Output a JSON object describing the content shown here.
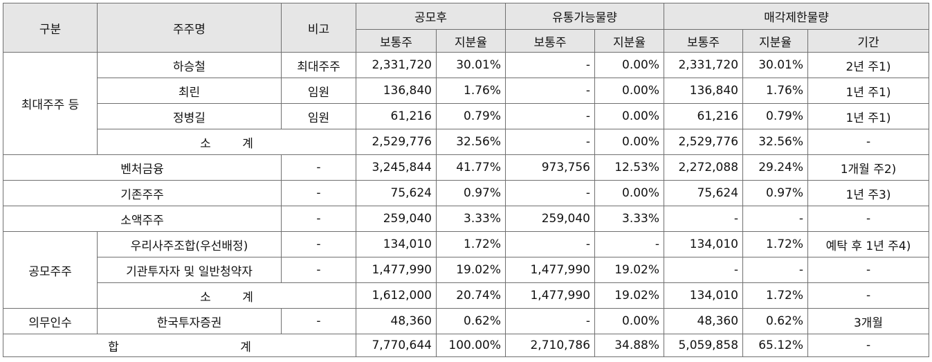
{
  "header": {
    "category": "구분",
    "shareholder": "주주명",
    "note": "비고",
    "after_ipo": "공모후",
    "tradable": "유통가능물량",
    "restricted": "매각제한물량",
    "common": "보통주",
    "ratio": "지분율",
    "period": "기간"
  },
  "groups": {
    "largest": "최대주주 등",
    "public": "공모주주",
    "underwriter": "의무인수"
  },
  "rows": [
    {
      "name": "하승철",
      "note": "최대주주",
      "shares": "2,331,720",
      "ratio": "30.01%",
      "t_shares": "-",
      "t_ratio": "0.00%",
      "r_shares": "2,331,720",
      "r_ratio": "30.01%",
      "period": "2년 주1)"
    },
    {
      "name": "최린",
      "note": "임원",
      "shares": "136,840",
      "ratio": "1.76%",
      "t_shares": "-",
      "t_ratio": "0.00%",
      "r_shares": "136,840",
      "r_ratio": "1.76%",
      "period": "1년 주1)"
    },
    {
      "name": "정병길",
      "note": "임원",
      "shares": "61,216",
      "ratio": "0.79%",
      "t_shares": "-",
      "t_ratio": "0.00%",
      "r_shares": "61,216",
      "r_ratio": "0.79%",
      "period": "1년 주1)"
    },
    {
      "name": "소 계",
      "shares": "2,529,776",
      "ratio": "32.56%",
      "t_shares": "-",
      "t_ratio": "0.00%",
      "r_shares": "2,529,776",
      "r_ratio": "32.56%",
      "period": "-"
    },
    {
      "name": "벤처금융",
      "note": "-",
      "shares": "3,245,844",
      "ratio": "41.77%",
      "t_shares": "973,756",
      "t_ratio": "12.53%",
      "r_shares": "2,272,088",
      "r_ratio": "29.24%",
      "period": "1개월 주2)"
    },
    {
      "name": "기존주주",
      "note": "-",
      "shares": "75,624",
      "ratio": "0.97%",
      "t_shares": "-",
      "t_ratio": "0.00%",
      "r_shares": "75,624",
      "r_ratio": "0.97%",
      "period": "1년 주3)"
    },
    {
      "name": "소액주주",
      "note": "-",
      "shares": "259,040",
      "ratio": "3.33%",
      "t_shares": "259,040",
      "t_ratio": "3.33%",
      "r_shares": "-",
      "r_ratio": "-",
      "period": "-"
    },
    {
      "name": "우리사주조합(우선배정)",
      "note": "-",
      "shares": "134,010",
      "ratio": "1.72%",
      "t_shares": "-",
      "t_ratio": "-",
      "r_shares": "134,010",
      "r_ratio": "1.72%",
      "period": "예탁 후 1년 주4)"
    },
    {
      "name": "기관투자자 및 일반청약자",
      "note": "-",
      "shares": "1,477,990",
      "ratio": "19.02%",
      "t_shares": "1,477,990",
      "t_ratio": "19.02%",
      "r_shares": "-",
      "r_ratio": "-",
      "period": "-"
    },
    {
      "name": "소 계",
      "shares": "1,612,000",
      "ratio": "20.74%",
      "t_shares": "1,477,990",
      "t_ratio": "19.02%",
      "r_shares": "134,010",
      "r_ratio": "1.72%",
      "period": "-"
    },
    {
      "name": "한국투자증권",
      "note": "-",
      "shares": "48,360",
      "ratio": "0.62%",
      "t_shares": "-",
      "t_ratio": "0.00%",
      "r_shares": "48,360",
      "r_ratio": "0.62%",
      "period": "3개월"
    },
    {
      "name": "합 계",
      "shares": "7,770,644",
      "ratio": "100.00%",
      "t_shares": "2,710,786",
      "t_ratio": "34.88%",
      "r_shares": "5,059,858",
      "r_ratio": "65.12%",
      "period": "-"
    }
  ]
}
